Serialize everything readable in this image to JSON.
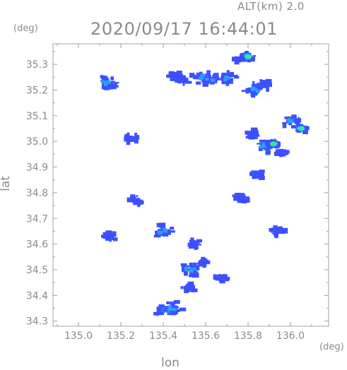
{
  "header": {
    "altitude_label": "ALT(km)  2.0",
    "timestamp": "2020/09/17 16:44:01"
  },
  "axes": {
    "y_unit": "(deg)",
    "x_unit": "(deg)",
    "xlabel": "lon",
    "ylabel": "lat"
  },
  "colors": {
    "axis": "#a0a0a0",
    "text": "#8a8a8a",
    "echo_weak": "#3c50ff",
    "echo_mid": "#28a0ff",
    "echo_strong": "#30e8a0"
  },
  "chart_data": {
    "type": "heatmap",
    "title": "2020/09/17 16:44:01",
    "xlabel": "lon",
    "ylabel": "lat",
    "xlim": [
      134.88,
      136.18
    ],
    "ylim": [
      34.28,
      35.38
    ],
    "x_ticks": [
      135.0,
      135.2,
      135.4,
      135.6,
      135.8,
      136.0
    ],
    "x_tick_labels": [
      "135.0",
      "135.2",
      "135.4",
      "135.6",
      "135.8",
      "136.0"
    ],
    "y_ticks": [
      34.3,
      34.4,
      34.5,
      34.6,
      34.7,
      34.8,
      34.9,
      35.0,
      35.1,
      35.2,
      35.3
    ],
    "y_tick_labels": [
      "34.3",
      "34.4",
      "34.5",
      "34.6",
      "34.7",
      "34.8",
      "34.9",
      "35.0",
      "35.1",
      "35.2",
      "35.3"
    ],
    "grid": false,
    "legend": "none",
    "echo_regions": [
      {
        "lon": 135.45,
        "lat": 35.26,
        "level": 1
      },
      {
        "lon": 135.5,
        "lat": 35.24,
        "level": 1
      },
      {
        "lon": 135.58,
        "lat": 35.25,
        "level": 2
      },
      {
        "lon": 135.63,
        "lat": 35.24,
        "level": 2
      },
      {
        "lon": 135.7,
        "lat": 35.25,
        "level": 2
      },
      {
        "lon": 135.76,
        "lat": 35.32,
        "level": 1
      },
      {
        "lon": 135.8,
        "lat": 35.33,
        "level": 3
      },
      {
        "lon": 135.83,
        "lat": 35.2,
        "level": 2
      },
      {
        "lon": 135.88,
        "lat": 35.22,
        "level": 1
      },
      {
        "lon": 135.82,
        "lat": 35.03,
        "level": 1
      },
      {
        "lon": 135.88,
        "lat": 34.98,
        "level": 2
      },
      {
        "lon": 135.92,
        "lat": 34.99,
        "level": 3
      },
      {
        "lon": 136.0,
        "lat": 35.08,
        "level": 2
      },
      {
        "lon": 136.05,
        "lat": 35.05,
        "level": 3
      },
      {
        "lon": 135.96,
        "lat": 34.95,
        "level": 1
      },
      {
        "lon": 135.55,
        "lat": 34.6,
        "level": 1
      },
      {
        "lon": 135.53,
        "lat": 34.5,
        "level": 2
      },
      {
        "lon": 135.52,
        "lat": 34.43,
        "level": 1
      },
      {
        "lon": 135.58,
        "lat": 34.53,
        "level": 1
      },
      {
        "lon": 135.4,
        "lat": 34.34,
        "level": 2
      },
      {
        "lon": 135.45,
        "lat": 34.35,
        "level": 2
      },
      {
        "lon": 135.14,
        "lat": 35.23,
        "level": 2
      },
      {
        "lon": 135.15,
        "lat": 34.63,
        "level": 1
      },
      {
        "lon": 135.25,
        "lat": 35.01,
        "level": 1
      },
      {
        "lon": 135.27,
        "lat": 34.77,
        "level": 1
      },
      {
        "lon": 135.4,
        "lat": 34.65,
        "level": 2
      },
      {
        "lon": 135.85,
        "lat": 34.87,
        "level": 1
      },
      {
        "lon": 135.77,
        "lat": 34.78,
        "level": 1
      },
      {
        "lon": 135.94,
        "lat": 34.65,
        "level": 1
      },
      {
        "lon": 135.67,
        "lat": 34.47,
        "level": 1
      }
    ]
  }
}
